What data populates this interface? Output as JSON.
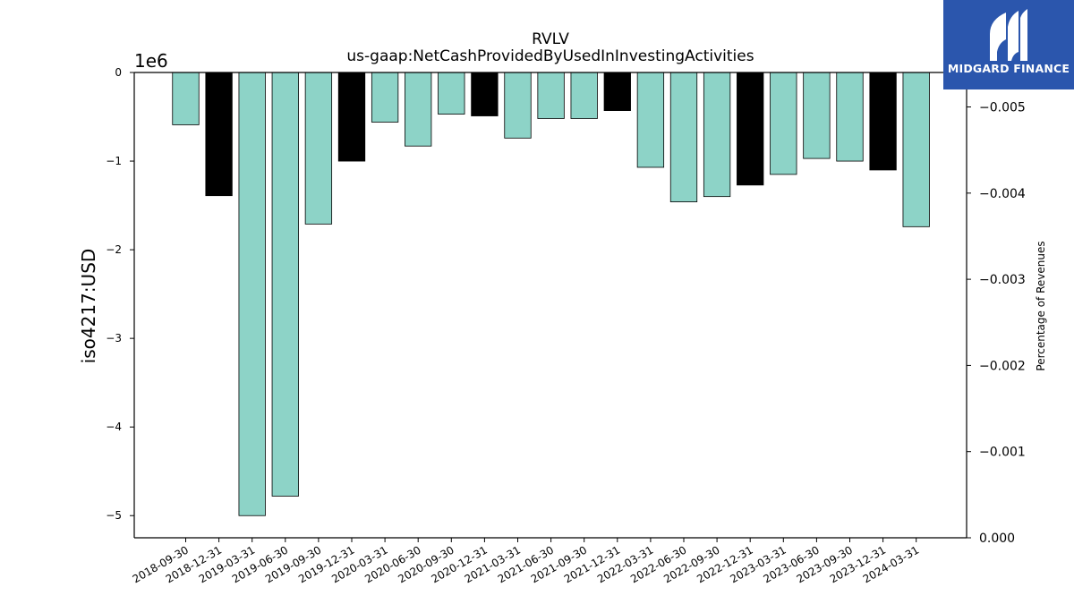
{
  "brand": {
    "name": "MIDGARD FINANCE",
    "colors": {
      "background": "#2b56ad",
      "text": "#ffffff"
    }
  },
  "chart_data": {
    "type": "bar",
    "title": "RVLV",
    "subtitle": "us-gaap:NetCashProvidedByUsedInInvestingActivities",
    "ylabel": "iso4217:USD",
    "y_offset_label": "1e6",
    "y2label": "Percentage of Revenues",
    "ylim": [
      -5.25,
      0
    ],
    "y2lim": [
      0,
      -0.0054
    ],
    "yticks": [
      0,
      -1,
      -2,
      -3,
      -4,
      -5
    ],
    "ytick_labels": [
      "0",
      "−1",
      "−2",
      "−3",
      "−4",
      "−5"
    ],
    "y2ticks": [
      0,
      -0.001,
      -0.002,
      -0.003,
      -0.004,
      -0.005
    ],
    "y2tick_labels": [
      "0.000",
      "−0.001",
      "−0.002",
      "−0.003",
      "−0.004",
      "−0.005"
    ],
    "categories": [
      "2018-09-30",
      "2018-12-31",
      "2019-03-31",
      "2019-06-30",
      "2019-09-30",
      "2019-12-31",
      "2020-03-31",
      "2020-06-30",
      "2020-09-30",
      "2020-12-31",
      "2021-03-31",
      "2021-06-30",
      "2021-09-30",
      "2021-12-31",
      "2022-03-31",
      "2022-06-30",
      "2022-09-30",
      "2022-12-31",
      "2023-03-31",
      "2023-06-30",
      "2023-09-30",
      "2023-12-31",
      "2024-03-31"
    ],
    "values": [
      -0.59,
      -1.39,
      -5.0,
      -4.78,
      -1.71,
      -1.0,
      -0.56,
      -0.83,
      -0.47,
      -0.49,
      -0.74,
      -0.52,
      -0.52,
      -0.43,
      -1.07,
      -1.46,
      -1.4,
      -1.27,
      -1.15,
      -0.97,
      -1.0,
      -1.1,
      -1.74
    ],
    "bar_colors": [
      "#8dd3c7",
      "#000000",
      "#8dd3c7",
      "#8dd3c7",
      "#8dd3c7",
      "#000000",
      "#8dd3c7",
      "#8dd3c7",
      "#8dd3c7",
      "#000000",
      "#8dd3c7",
      "#8dd3c7",
      "#8dd3c7",
      "#000000",
      "#8dd3c7",
      "#8dd3c7",
      "#8dd3c7",
      "#000000",
      "#8dd3c7",
      "#8dd3c7",
      "#8dd3c7",
      "#000000",
      "#8dd3c7"
    ],
    "grid": false,
    "legend": "none"
  }
}
